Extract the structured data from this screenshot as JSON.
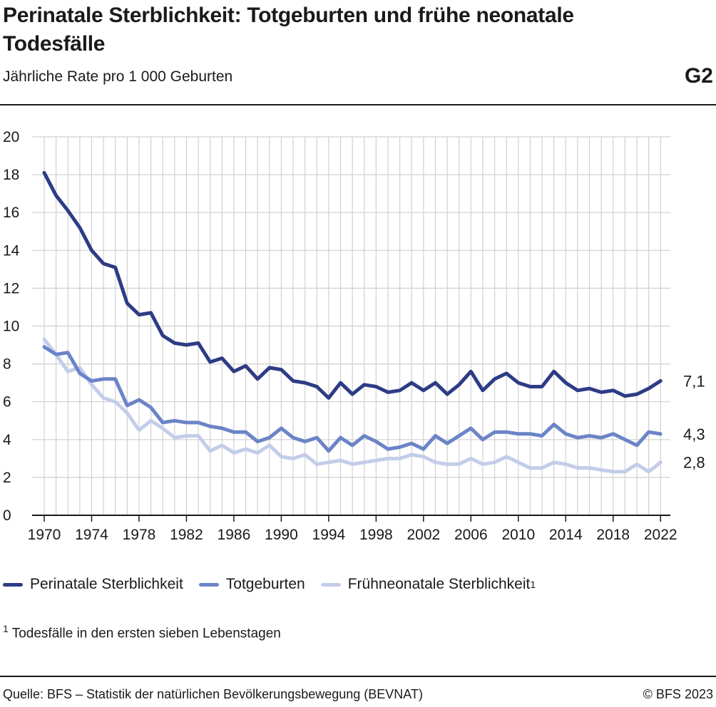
{
  "header": {
    "title": "Perinatale Sterblichkeit: Totgeburten und frühe neonatale Todesfälle",
    "subtitle": "Jährliche Rate pro 1 000 Geburten",
    "code": "G2"
  },
  "colors": {
    "perinatal": "#2e3c85",
    "totgeburten": "#6b84c8",
    "fruehneonatal": "#c2cde9",
    "grid": "#d0d0d0",
    "axis": "#1a1a1a"
  },
  "chart_data": {
    "type": "line",
    "x": [
      1970,
      1971,
      1972,
      1973,
      1974,
      1975,
      1976,
      1977,
      1978,
      1979,
      1980,
      1981,
      1982,
      1983,
      1984,
      1985,
      1986,
      1987,
      1988,
      1989,
      1990,
      1991,
      1992,
      1993,
      1994,
      1995,
      1996,
      1997,
      1998,
      1999,
      2000,
      2001,
      2002,
      2003,
      2004,
      2005,
      2006,
      2007,
      2008,
      2009,
      2010,
      2011,
      2012,
      2013,
      2014,
      2015,
      2016,
      2017,
      2018,
      2019,
      2020,
      2021,
      2022
    ],
    "x_tick_labels": [
      "1970",
      "1974",
      "1978",
      "1982",
      "1986",
      "1990",
      "1994",
      "1998",
      "2002",
      "2006",
      "2010",
      "2014",
      "2018",
      "2022"
    ],
    "y_tick_labels": [
      "0",
      "2",
      "4",
      "6",
      "8",
      "10",
      "12",
      "14",
      "16",
      "18",
      "20"
    ],
    "ylim": [
      0,
      20
    ],
    "grid": true,
    "legend_position": "bottom",
    "series": [
      {
        "key": "perinatal",
        "name": "Perinatale Sterblichkeit",
        "end_label": "7,1",
        "values": [
          18.1,
          16.9,
          16.1,
          15.2,
          14.0,
          13.3,
          13.1,
          11.2,
          10.6,
          10.7,
          9.5,
          9.1,
          9.0,
          9.1,
          8.1,
          8.3,
          7.6,
          7.9,
          7.2,
          7.8,
          7.7,
          7.1,
          7.0,
          6.8,
          6.2,
          7.0,
          6.4,
          6.9,
          6.8,
          6.5,
          6.6,
          7.0,
          6.6,
          7.0,
          6.4,
          6.9,
          7.6,
          6.6,
          7.2,
          7.5,
          7.0,
          6.8,
          6.8,
          7.6,
          7.0,
          6.6,
          6.7,
          6.5,
          6.6,
          6.3,
          6.4,
          6.7,
          7.1
        ]
      },
      {
        "key": "totgeburten",
        "name": "Totgeburten",
        "end_label": "4,3",
        "values": [
          8.9,
          8.5,
          8.6,
          7.5,
          7.1,
          7.2,
          7.2,
          5.8,
          6.1,
          5.7,
          4.9,
          5.0,
          4.9,
          4.9,
          4.7,
          4.6,
          4.4,
          4.4,
          3.9,
          4.1,
          4.6,
          4.1,
          3.9,
          4.1,
          3.4,
          4.1,
          3.7,
          4.2,
          3.9,
          3.5,
          3.6,
          3.8,
          3.5,
          4.2,
          3.8,
          4.2,
          4.6,
          4.0,
          4.4,
          4.4,
          4.3,
          4.3,
          4.2,
          4.8,
          4.3,
          4.1,
          4.2,
          4.1,
          4.3,
          4.0,
          3.7,
          4.4,
          4.3
        ]
      },
      {
        "key": "fruehneonatal",
        "name": "Frühneonatale Sterblichkeit",
        "name_sup": "1",
        "end_label": "2,8",
        "values": [
          9.3,
          8.5,
          7.6,
          7.8,
          6.9,
          6.2,
          6.0,
          5.4,
          4.5,
          5.0,
          4.6,
          4.1,
          4.2,
          4.2,
          3.4,
          3.7,
          3.3,
          3.5,
          3.3,
          3.7,
          3.1,
          3.0,
          3.2,
          2.7,
          2.8,
          2.9,
          2.7,
          2.8,
          2.9,
          3.0,
          3.0,
          3.2,
          3.1,
          2.8,
          2.7,
          2.7,
          3.0,
          2.7,
          2.8,
          3.1,
          2.8,
          2.5,
          2.5,
          2.8,
          2.7,
          2.5,
          2.5,
          2.4,
          2.3,
          2.3,
          2.7,
          2.3,
          2.8
        ]
      }
    ]
  },
  "footnote": {
    "marker": "1",
    "text": "Todesfälle in den ersten sieben Lebenstagen"
  },
  "footer": {
    "source": "Quelle: BFS – Statistik der natürlichen Bevölkerungsbewegung (BEVNAT)",
    "copyright": "© BFS 2023"
  }
}
